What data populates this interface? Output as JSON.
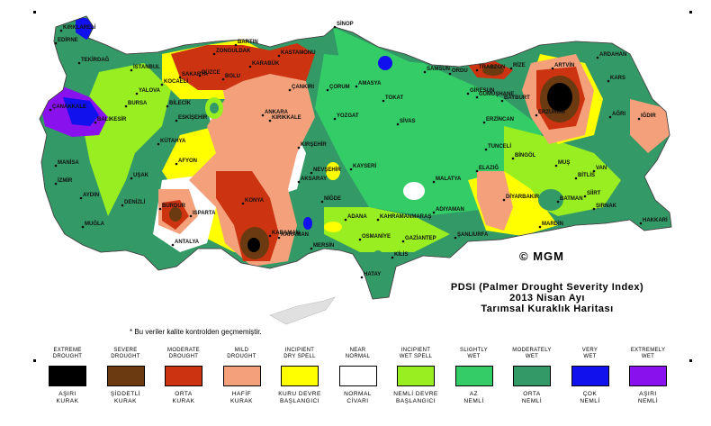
{
  "title": {
    "line1": "PDSI (Palmer Drought Severity Index)",
    "line2": "2013 Nisan Ayı",
    "line3": "Tarımsal Kuraklık Haritası"
  },
  "credit": "© MGM",
  "footnote": "* Bu veriler kalite kontrolden geçmemiştir.",
  "legend": [
    {
      "en1": "EXTREME",
      "en2": "DROUGHT",
      "tr1": "AŞIRI",
      "tr2": "KURAK",
      "color": "#000000"
    },
    {
      "en1": "SEVERE",
      "en2": "DROUGHT",
      "tr1": "ŞİDDETLİ",
      "tr2": "KURAK",
      "color": "#6b3a10"
    },
    {
      "en1": "MODERATE",
      "en2": "DROUGHT",
      "tr1": "ORTA",
      "tr2": "KURAK",
      "color": "#cc3311"
    },
    {
      "en1": "MILD",
      "en2": "DROUGHT",
      "tr1": "HAFİF",
      "tr2": "KURAK",
      "color": "#f4a07a"
    },
    {
      "en1": "INCIPIENT",
      "en2": "DRY SPELL",
      "tr1": "KURU DEVRE",
      "tr2": "BAŞLANGICI",
      "color": "#ffff00"
    },
    {
      "en1": "NEAR",
      "en2": "NORMAL",
      "tr1": "NORMAL",
      "tr2": "CİVARI",
      "color": "#ffffff"
    },
    {
      "en1": "INCIPIENT",
      "en2": "WET SPELL",
      "tr1": "NEMLİ DEVRE",
      "tr2": "BAŞLANGICI",
      "color": "#99ee22"
    },
    {
      "en1": "SLIGHTLY",
      "en2": "WET",
      "tr1": "AZ",
      "tr2": "NEMLİ",
      "color": "#33cc66"
    },
    {
      "en1": "MODERATELY",
      "en2": "WET",
      "tr1": "ORTA",
      "tr2": "NEMLİ",
      "color": "#339966"
    },
    {
      "en1": "VERY",
      "en2": "WET",
      "tr1": "ÇOK",
      "tr2": "NEMLİ",
      "color": "#1111ee"
    },
    {
      "en1": "EXTREMELY",
      "en2": "WET",
      "tr1": "AŞIRI",
      "tr2": "NEMLİ",
      "color": "#8811ee"
    }
  ],
  "cities": [
    {
      "name": "SİNOP"
    },
    {
      "name": "BARTIN"
    },
    {
      "name": "ZONGULDAK"
    },
    {
      "name": "KASTAMONU"
    },
    {
      "name": "KARABÜK"
    },
    {
      "name": "DÜZCE"
    },
    {
      "name": "BOLU"
    },
    {
      "name": "SAKARYA"
    },
    {
      "name": "KOCAELİ"
    },
    {
      "name": "İSTANBUL"
    },
    {
      "name": "KIRKLARELİ"
    },
    {
      "name": "EDİRNE"
    },
    {
      "name": "TEKİRDAĞ"
    },
    {
      "name": "YALOVA"
    },
    {
      "name": "BURSA"
    },
    {
      "name": "BİLECİK"
    },
    {
      "name": "ÇANAKKALE"
    },
    {
      "name": "BALIKESİR"
    },
    {
      "name": "ESKİŞEHİR"
    },
    {
      "name": "KÜTAHYA"
    },
    {
      "name": "MANİSA"
    },
    {
      "name": "İZMİR"
    },
    {
      "name": "AYDIN"
    },
    {
      "name": "MUĞLA"
    },
    {
      "name": "DENİZLİ"
    },
    {
      "name": "UŞAK"
    },
    {
      "name": "AFYON"
    },
    {
      "name": "BURDUR"
    },
    {
      "name": "ISPARTA"
    },
    {
      "name": "ANTALYA"
    },
    {
      "name": "KONYA"
    },
    {
      "name": "KARAMAN"
    },
    {
      "name": "MERSİN"
    },
    {
      "name": "ADANA"
    },
    {
      "name": "OSMANİYE"
    },
    {
      "name": "HATAY"
    },
    {
      "name": "KİLİS"
    },
    {
      "name": "GAZİANTEP"
    },
    {
      "name": "ŞANLIURFA"
    },
    {
      "name": "ANKARA"
    },
    {
      "name": "ÇANKIRI"
    },
    {
      "name": "KIRIKKALE"
    },
    {
      "name": "KIRŞEHİR"
    },
    {
      "name": "AKSARAY"
    },
    {
      "name": "NİĞDE"
    },
    {
      "name": "NEVŞEHİR"
    },
    {
      "name": "KAYSERİ"
    },
    {
      "name": "YOZGAT"
    },
    {
      "name": "ÇORUM"
    },
    {
      "name": "AMASYA"
    },
    {
      "name": "TOKAT"
    },
    {
      "name": "SİVAS"
    },
    {
      "name": "SAMSUN"
    },
    {
      "name": "ORDU"
    },
    {
      "name": "GİRESUN"
    },
    {
      "name": "TRABZON"
    },
    {
      "name": "RİZE"
    },
    {
      "name": "ARTVİN"
    },
    {
      "name": "GÜMÜŞHANE"
    },
    {
      "name": "BAYBURT"
    },
    {
      "name": "ERZURUM"
    },
    {
      "name": "ERZİNCAN"
    },
    {
      "name": "TUNCELİ"
    },
    {
      "name": "BİNGÖL"
    },
    {
      "name": "MUŞ"
    },
    {
      "name": "BİTLİS"
    },
    {
      "name": "VAN"
    },
    {
      "name": "AĞRI"
    },
    {
      "name": "KARS"
    },
    {
      "name": "IĞDIR"
    },
    {
      "name": "ARDAHAN"
    },
    {
      "name": "ELAZIĞ"
    },
    {
      "name": "MALATYA"
    },
    {
      "name": "ADIYAMAN"
    },
    {
      "name": "DİYARBAKIR"
    },
    {
      "name": "BATMAN"
    },
    {
      "name": "SİİRT"
    },
    {
      "name": "MARDİN"
    },
    {
      "name": "ŞIRNAK"
    },
    {
      "name": "HAKKARİ"
    },
    {
      "name": "KAHRAMANMARAŞ"
    },
    {
      "name": "KARAMAN"
    }
  ]
}
